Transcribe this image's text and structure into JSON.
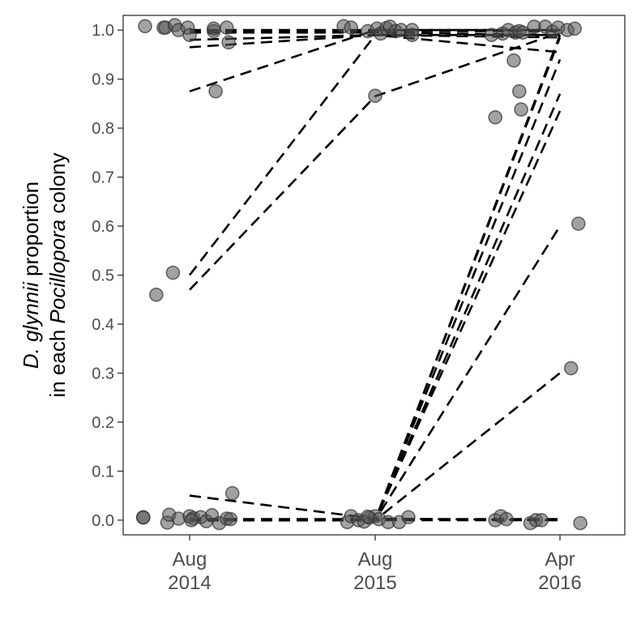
{
  "chart_data": {
    "type": "scatter",
    "title": "",
    "xlabel": "",
    "ylabel": {
      "line1": [
        {
          "text": "D. glynnii",
          "italic": true
        },
        {
          "text": " proportion",
          "italic": false
        }
      ],
      "line2": [
        {
          "text": "in each ",
          "italic": false
        },
        {
          "text": "Pocillopora",
          "italic": true
        },
        {
          "text": " colony",
          "italic": false
        }
      ]
    },
    "x_categories": [
      {
        "month": "Aug",
        "year": "2014"
      },
      {
        "month": "Aug",
        "year": "2015"
      },
      {
        "month": "Apr",
        "year": "2016"
      }
    ],
    "ylim": [
      -0.03,
      1.03
    ],
    "y_ticks": [
      "0.0",
      "0.1",
      "0.2",
      "0.3",
      "0.4",
      "0.5",
      "0.6",
      "0.7",
      "0.8",
      "0.9",
      "1.0"
    ],
    "grid": false,
    "legend": "none",
    "colors": {
      "points": "#555555",
      "lines": "#000000",
      "axis_text": "#4d4d4d"
    },
    "points": [
      {
        "x": -0.24,
        "y": 1.008
      },
      {
        "x": -0.25,
        "y": 0.006
      },
      {
        "x": -0.25,
        "y": 0.005
      },
      {
        "x": -0.14,
        "y": 1.005
      },
      {
        "x": -0.13,
        "y": 1.005
      },
      {
        "x": -0.08,
        "y": 1.01
      },
      {
        "x": -0.06,
        "y": 1.0
      },
      {
        "x": -0.01,
        "y": 1.005
      },
      {
        "x": 0.0,
        "y": 0.99
      },
      {
        "x": 0.13,
        "y": 0.998
      },
      {
        "x": 0.13,
        "y": 1.003
      },
      {
        "x": 0.2,
        "y": 1.005
      },
      {
        "x": 0.21,
        "y": 0.975
      },
      {
        "x": 0.14,
        "y": 0.875
      },
      {
        "x": -0.18,
        "y": 0.46
      },
      {
        "x": -0.09,
        "y": 0.505
      },
      {
        "x": 0.23,
        "y": 0.055
      },
      {
        "x": -0.12,
        "y": -0.005
      },
      {
        "x": -0.11,
        "y": 0.011
      },
      {
        "x": -0.06,
        "y": 0.003
      },
      {
        "x": 0.0,
        "y": 0.008
      },
      {
        "x": 0.02,
        "y": 0.004
      },
      {
        "x": 0.06,
        "y": 0.006
      },
      {
        "x": 0.09,
        "y": -0.002
      },
      {
        "x": 0.12,
        "y": 0.01
      },
      {
        "x": 0.16,
        "y": -0.006
      },
      {
        "x": 0.2,
        "y": 0.003
      },
      {
        "x": 0.22,
        "y": 0.002
      },
      {
        "x": 0.01,
        "y": 0.0
      },
      {
        "x": 0.83,
        "y": 1.008
      },
      {
        "x": 0.87,
        "y": 1.005
      },
      {
        "x": 0.96,
        "y": 0.998
      },
      {
        "x": 1.01,
        "y": 1.003
      },
      {
        "x": 1.03,
        "y": 0.993
      },
      {
        "x": 1.06,
        "y": 1.004
      },
      {
        "x": 1.08,
        "y": 1.007
      },
      {
        "x": 1.11,
        "y": 0.998
      },
      {
        "x": 1.14,
        "y": 1.0
      },
      {
        "x": 1.2,
        "y": 1.0
      },
      {
        "x": 1.2,
        "y": 0.99
      },
      {
        "x": 1.0,
        "y": 0.866
      },
      {
        "x": 0.85,
        "y": -0.004
      },
      {
        "x": 0.87,
        "y": 0.008
      },
      {
        "x": 0.91,
        "y": 0.0
      },
      {
        "x": 0.94,
        "y": -0.003
      },
      {
        "x": 0.97,
        "y": 0.005
      },
      {
        "x": 1.0,
        "y": 0.008
      },
      {
        "x": 1.02,
        "y": 0.002
      },
      {
        "x": 1.07,
        "y": -0.004
      },
      {
        "x": 1.13,
        "y": -0.004
      },
      {
        "x": 1.18,
        "y": 0.006
      },
      {
        "x": 0.96,
        "y": 0.007
      },
      {
        "x": 1.63,
        "y": 0.99
      },
      {
        "x": 1.69,
        "y": 0.993
      },
      {
        "x": 1.72,
        "y": 1.0
      },
      {
        "x": 1.76,
        "y": 0.995
      },
      {
        "x": 1.78,
        "y": 0.998
      },
      {
        "x": 1.8,
        "y": 0.995
      },
      {
        "x": 1.86,
        "y": 1.007
      },
      {
        "x": 1.92,
        "y": 1.007
      },
      {
        "x": 1.96,
        "y": 0.997
      },
      {
        "x": 1.99,
        "y": 1.005
      },
      {
        "x": 2.04,
        "y": 1.0
      },
      {
        "x": 2.08,
        "y": 1.003
      },
      {
        "x": 1.75,
        "y": 0.938
      },
      {
        "x": 1.78,
        "y": 0.875
      },
      {
        "x": 1.79,
        "y": 0.838
      },
      {
        "x": 1.65,
        "y": 0.822
      },
      {
        "x": 2.1,
        "y": 0.605
      },
      {
        "x": 2.06,
        "y": 0.31
      },
      {
        "x": 1.65,
        "y": 0.0
      },
      {
        "x": 1.68,
        "y": 0.008
      },
      {
        "x": 1.71,
        "y": 0.002
      },
      {
        "x": 1.84,
        "y": -0.006
      },
      {
        "x": 1.87,
        "y": 0.0
      },
      {
        "x": 1.9,
        "y": 0.0
      },
      {
        "x": 2.11,
        "y": -0.006
      }
    ],
    "lines": [
      [
        [
          0,
          1.0
        ],
        [
          1,
          1.0
        ],
        [
          2,
          1.0
        ]
      ],
      [
        [
          0,
          0.998
        ],
        [
          1,
          0.998
        ],
        [
          2,
          0.998
        ]
      ],
      [
        [
          0,
          0.995
        ],
        [
          1,
          0.995
        ],
        [
          2,
          0.99
        ]
      ],
      [
        [
          0,
          0.98
        ],
        [
          1,
          0.99
        ],
        [
          2,
          0.955
        ]
      ],
      [
        [
          0,
          0.965
        ],
        [
          1,
          0.99
        ],
        [
          2,
          0.985
        ]
      ],
      [
        [
          0,
          0.875
        ],
        [
          1,
          1.0
        ],
        [
          2,
          1.0
        ]
      ],
      [
        [
          0,
          0.5
        ],
        [
          1,
          0.99
        ],
        [
          2,
          0.99
        ]
      ],
      [
        [
          0,
          0.47
        ],
        [
          1,
          0.865
        ],
        [
          2,
          0.995
        ]
      ],
      [
        [
          0,
          0.05
        ],
        [
          1,
          0.003
        ],
        [
          2,
          0.0
        ]
      ],
      [
        [
          0,
          0.0
        ],
        [
          1,
          0.0
        ],
        [
          2,
          0.0
        ]
      ],
      [
        [
          0,
          0.002
        ],
        [
          1,
          0.002
        ],
        [
          2,
          0.002
        ]
      ],
      [
        [
          0,
          0.0
        ],
        [
          1,
          0.0
        ],
        [
          2,
          0.835
        ]
      ],
      [
        [
          0,
          0.0
        ],
        [
          1,
          0.0
        ],
        [
          2,
          0.87
        ]
      ],
      [
        [
          0,
          0.0
        ],
        [
          1,
          0.0
        ],
        [
          2,
          0.94
        ]
      ],
      [
        [
          0,
          0.0
        ],
        [
          1,
          0.0
        ],
        [
          2,
          0.985
        ]
      ],
      [
        [
          0,
          0.0
        ],
        [
          1,
          0.0
        ],
        [
          2,
          0.99
        ]
      ],
      [
        [
          0,
          0.0
        ],
        [
          1,
          0.0
        ],
        [
          2,
          0.6
        ]
      ],
      [
        [
          0,
          0.0
        ],
        [
          1,
          0.0
        ],
        [
          2,
          0.3
        ]
      ]
    ]
  }
}
